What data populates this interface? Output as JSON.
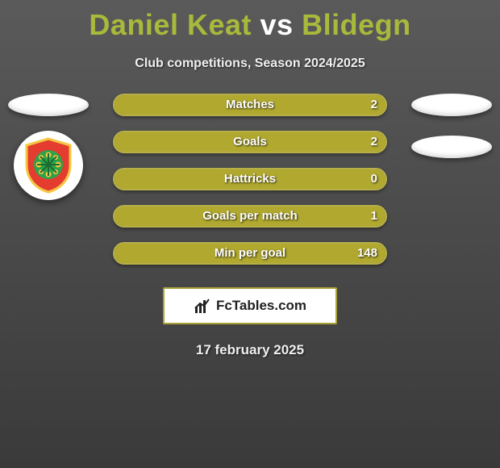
{
  "header": {
    "title_html": "<span style=\"color:#a9b93b\">Daniel Keat</span> <span style=\"color:#ffffff\">vs</span> <span style=\"color:#a9b93b\">Blidegn</span>",
    "subtitle": "Club competitions, Season 2024/2025"
  },
  "colors": {
    "bar_fill": "#b0a82f",
    "bar_border": "#b7b04a",
    "bar_bg": "#6f6f6f"
  },
  "stats": [
    {
      "label": "Matches",
      "value_right": "2",
      "fill_pct": 100
    },
    {
      "label": "Goals",
      "value_right": "2",
      "fill_pct": 100
    },
    {
      "label": "Hattricks",
      "value_right": "0",
      "fill_pct": 100
    },
    {
      "label": "Goals per match",
      "value_right": "1",
      "fill_pct": 100
    },
    {
      "label": "Min per goal",
      "value_right": "148",
      "fill_pct": 100
    }
  ],
  "brand": {
    "text": "FcTables.com"
  },
  "footer": {
    "date": "17 february 2025"
  },
  "badge": {
    "shield_fill": "#e43c2e",
    "shield_border": "#f5c642",
    "center_fill": "#2ea24a",
    "accent": "#f5c642"
  }
}
